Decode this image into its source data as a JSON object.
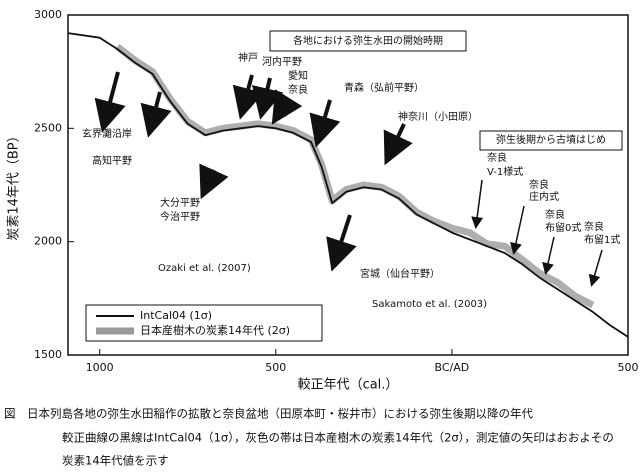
{
  "chart_data": {
    "type": "line",
    "xlabel": "較正年代（cal.）",
    "ylabel": "炭素14年代（BP）",
    "x": [
      -1090,
      -1000,
      -950,
      -900,
      -850,
      -800,
      -750,
      -700,
      -650,
      -600,
      -550,
      -500,
      -450,
      -400,
      -370,
      -340,
      -300,
      -250,
      -200,
      -150,
      -100,
      -50,
      0,
      50,
      100,
      150,
      200,
      250,
      300,
      350,
      400,
      450,
      500
    ],
    "series": [
      {
        "name": "IntCal04 (1σ)",
        "color": "#111111",
        "values": [
          2920,
          2900,
          2850,
          2790,
          2740,
          2620,
          2520,
          2470,
          2490,
          2500,
          2510,
          2500,
          2480,
          2440,
          2330,
          2170,
          2220,
          2240,
          2230,
          2190,
          2120,
          2080,
          2040,
          2010,
          1980,
          1950,
          1900,
          1840,
          1790,
          1740,
          1690,
          1630,
          1580
        ]
      },
      {
        "name": "日本産樹木の炭素14年代 (2σ)",
        "color": "#9a9a9a",
        "values": [
          null,
          null,
          2860,
          2800,
          2750,
          2630,
          2530,
          2480,
          2500,
          2510,
          2520,
          2510,
          2490,
          2450,
          2340,
          2180,
          2230,
          2250,
          2240,
          2200,
          2130,
          2090,
          2060,
          2040,
          1990,
          1980,
          1920,
          1860,
          1820,
          1760,
          1720,
          null,
          null
        ]
      }
    ],
    "xlim": [
      -1090,
      500
    ],
    "ylim": [
      1500,
      3000
    ],
    "xticks": [
      {
        "value": -1000,
        "label": "1000"
      },
      {
        "value": -500,
        "label": "500"
      },
      {
        "value": 0,
        "label": "BC/AD"
      },
      {
        "value": 500,
        "label": "500"
      }
    ],
    "yticks": [
      1500,
      2000,
      2500,
      3000
    ],
    "annotations": [
      "各地における弥生水田の開始時期",
      "弥生後期から古墳はじめ",
      "玄界灘沿岸",
      "高知平野",
      "大分平野",
      "今治平野",
      "神戸",
      "河内平野",
      "愛知",
      "奈良",
      "青森（弘前平野）",
      "神奈川（小田原）",
      "宮城（仙台平野）",
      "Ozaki et al. (2007)",
      "Sakamoto et al. (2003)",
      "奈良",
      "V-1様式",
      "奈良",
      "庄内式",
      "奈良",
      "布留0式",
      "奈良",
      "布留1式"
    ],
    "caption": [
      "図　日本列島各地の弥生水田稲作の拡散と奈良盆地（田原本町・桜井市）における弥生後期以降の年代",
      "較正曲線の黒線はIntCal04（1σ），灰色の帯は日本産樹木の炭素14年代（2σ），測定値の矢印はおおよその",
      "炭素14年代値を示す"
    ]
  }
}
